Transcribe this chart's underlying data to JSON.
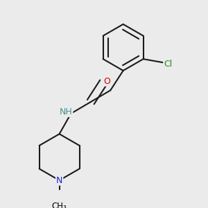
{
  "bg_color": "#ebebeb",
  "atom_colors": {
    "C": "#000000",
    "N": "#2020dd",
    "O": "#dd0000",
    "Cl": "#228B22",
    "H": "#4a9090"
  },
  "bond_color": "#1a1a1a",
  "bond_width": 1.5,
  "fig_size": [
    3.0,
    3.0
  ],
  "dpi": 100
}
